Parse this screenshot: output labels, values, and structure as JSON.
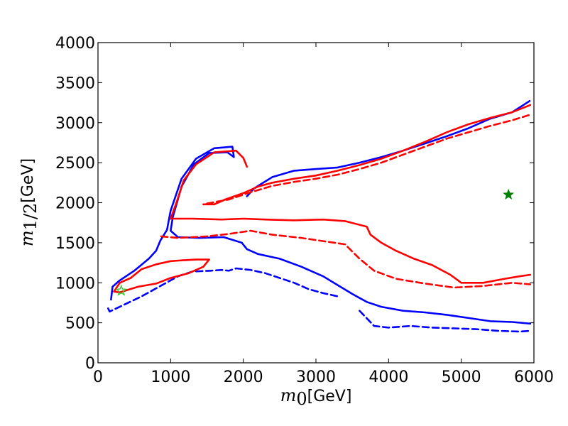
{
  "chart_data": {
    "type": "line",
    "title": "",
    "xlabel": {
      "symbol": "m",
      "sub": "0",
      "unit": "[GeV]"
    },
    "ylabel": {
      "symbol": "m",
      "sub": "1/2",
      "unit": "[GeV]"
    },
    "xlim": [
      0,
      6000
    ],
    "ylim": [
      0,
      4000
    ],
    "xticks": [
      "0",
      "1000",
      "2000",
      "3000",
      "4000",
      "5000",
      "6000"
    ],
    "yticks": [
      "0",
      "500",
      "1000",
      "1500",
      "2000",
      "2500",
      "3000",
      "3500",
      "4000"
    ],
    "grid": false,
    "legend": "none",
    "series": [
      {
        "color": "#0000ff",
        "style": "solid",
        "points": [
          [
            180,
            790
          ],
          [
            200,
            950
          ],
          [
            300,
            1030
          ],
          [
            500,
            1150
          ],
          [
            700,
            1300
          ],
          [
            800,
            1400
          ],
          [
            860,
            1530
          ],
          [
            950,
            1660
          ],
          [
            1000,
            1900
          ],
          [
            1150,
            2300
          ],
          [
            1350,
            2550
          ],
          [
            1600,
            2680
          ],
          [
            1850,
            2700
          ],
          [
            1870,
            2570
          ],
          [
            1780,
            2630
          ],
          [
            1530,
            2620
          ],
          [
            1320,
            2480
          ],
          [
            1150,
            2200
          ],
          [
            1030,
            1820
          ],
          [
            1000,
            1650
          ],
          [
            1100,
            1570
          ],
          [
            1400,
            1560
          ],
          [
            1730,
            1570
          ],
          [
            1980,
            1500
          ],
          [
            2050,
            1420
          ],
          [
            2200,
            1360
          ],
          [
            2500,
            1300
          ],
          [
            2800,
            1200
          ],
          [
            3100,
            1080
          ],
          [
            3300,
            970
          ],
          [
            3500,
            860
          ],
          [
            3700,
            760
          ],
          [
            3900,
            700
          ],
          [
            4200,
            650
          ],
          [
            4500,
            630
          ],
          [
            4800,
            600
          ],
          [
            5100,
            560
          ],
          [
            5400,
            520
          ],
          [
            5700,
            510
          ],
          [
            5950,
            490
          ]
        ],
        "pointsB": [
          [
            2050,
            2080
          ],
          [
            2150,
            2180
          ],
          [
            2400,
            2320
          ],
          [
            2700,
            2400
          ],
          [
            3000,
            2420
          ],
          [
            3300,
            2440
          ],
          [
            3600,
            2500
          ],
          [
            3900,
            2570
          ],
          [
            4200,
            2650
          ],
          [
            4500,
            2740
          ],
          [
            4800,
            2830
          ],
          [
            5100,
            2930
          ],
          [
            5400,
            3050
          ],
          [
            5700,
            3130
          ],
          [
            5940,
            3270
          ]
        ]
      },
      {
        "color": "#0000ff",
        "style": "dashed",
        "points": [
          [
            140,
            680
          ],
          [
            160,
            640
          ],
          [
            300,
            700
          ],
          [
            600,
            830
          ],
          [
            900,
            980
          ],
          [
            1100,
            1080
          ],
          [
            1300,
            1140
          ],
          [
            1550,
            1150
          ],
          [
            1700,
            1160
          ],
          [
            1800,
            1150
          ],
          [
            1900,
            1180
          ],
          [
            2100,
            1160
          ],
          [
            2300,
            1120
          ],
          [
            2500,
            1060
          ],
          [
            2700,
            1000
          ],
          [
            2900,
            920
          ],
          [
            3100,
            870
          ],
          [
            3300,
            830
          ]
        ],
        "pointsB": [
          [
            3600,
            650
          ],
          [
            3800,
            460
          ],
          [
            4000,
            440
          ],
          [
            4300,
            460
          ],
          [
            4600,
            440
          ],
          [
            4900,
            430
          ],
          [
            5200,
            420
          ],
          [
            5500,
            400
          ],
          [
            5800,
            390
          ],
          [
            5960,
            400
          ]
        ]
      },
      {
        "color": "#ff0000",
        "style": "solid",
        "points": [
          [
            220,
            890
          ],
          [
            300,
            1000
          ],
          [
            450,
            1060
          ],
          [
            600,
            1170
          ],
          [
            800,
            1230
          ],
          [
            1000,
            1270
          ],
          [
            1150,
            1280
          ],
          [
            1350,
            1290
          ],
          [
            1530,
            1290
          ],
          [
            1450,
            1200
          ],
          [
            1250,
            1120
          ],
          [
            1000,
            1060
          ],
          [
            800,
            990
          ],
          [
            550,
            950
          ],
          [
            300,
            880
          ],
          [
            220,
            890
          ]
        ],
        "pointsB": [
          [
            1450,
            1980
          ],
          [
            1600,
            1980
          ],
          [
            1750,
            2040
          ],
          [
            2000,
            2120
          ],
          [
            2200,
            2200
          ],
          [
            2400,
            2250
          ],
          [
            2700,
            2300
          ],
          [
            3000,
            2340
          ],
          [
            3300,
            2400
          ],
          [
            3600,
            2470
          ],
          [
            3900,
            2550
          ],
          [
            4200,
            2650
          ],
          [
            4500,
            2760
          ],
          [
            4800,
            2880
          ],
          [
            5100,
            2980
          ],
          [
            5400,
            3060
          ],
          [
            5700,
            3130
          ],
          [
            5950,
            3220
          ]
        ],
        "pointsC": [
          [
            1000,
            1800
          ],
          [
            1300,
            1800
          ],
          [
            1700,
            1790
          ],
          [
            2000,
            1800
          ],
          [
            2300,
            1790
          ],
          [
            2700,
            1780
          ],
          [
            3100,
            1790
          ],
          [
            3400,
            1770
          ],
          [
            3700,
            1700
          ],
          [
            3750,
            1600
          ],
          [
            3900,
            1500
          ],
          [
            4100,
            1400
          ],
          [
            4350,
            1300
          ],
          [
            4600,
            1220
          ],
          [
            4850,
            1100
          ],
          [
            5000,
            1000
          ],
          [
            5300,
            1000
          ],
          [
            5600,
            1050
          ],
          [
            5800,
            1080
          ],
          [
            5950,
            1100
          ]
        ],
        "pointsD": [
          [
            1000,
            1800
          ],
          [
            1080,
            2000
          ],
          [
            1180,
            2280
          ],
          [
            1350,
            2480
          ],
          [
            1600,
            2630
          ],
          [
            1900,
            2650
          ],
          [
            2000,
            2560
          ],
          [
            2050,
            2450
          ]
        ]
      },
      {
        "color": "#ff0000",
        "style": "dashed",
        "points": [
          [
            870,
            1580
          ],
          [
            1100,
            1560
          ],
          [
            1500,
            1580
          ],
          [
            1800,
            1610
          ],
          [
            2100,
            1650
          ],
          [
            2400,
            1600
          ],
          [
            2800,
            1560
          ],
          [
            3100,
            1520
          ],
          [
            3400,
            1480
          ],
          [
            3600,
            1300
          ],
          [
            3800,
            1150
          ],
          [
            4100,
            1050
          ],
          [
            4500,
            990
          ],
          [
            4900,
            940
          ],
          [
            5300,
            960
          ],
          [
            5700,
            1000
          ],
          [
            5950,
            980
          ]
        ],
        "pointsB": [
          [
            1500,
            1990
          ],
          [
            1800,
            2040
          ],
          [
            2100,
            2130
          ],
          [
            2400,
            2210
          ],
          [
            2700,
            2260
          ],
          [
            3000,
            2300
          ],
          [
            3300,
            2350
          ],
          [
            3600,
            2420
          ],
          [
            3900,
            2500
          ],
          [
            4200,
            2600
          ],
          [
            4500,
            2700
          ],
          [
            4800,
            2800
          ],
          [
            5100,
            2880
          ],
          [
            5400,
            2960
          ],
          [
            5700,
            3030
          ],
          [
            5950,
            3100
          ]
        ]
      }
    ],
    "markers": [
      {
        "name": "benchmark-star-filled",
        "x": 5650,
        "y": 2100,
        "color": "#008000",
        "fill": true
      },
      {
        "name": "benchmark-star-open",
        "x": 320,
        "y": 900,
        "color": "#33cc33",
        "fill": false
      }
    ]
  }
}
